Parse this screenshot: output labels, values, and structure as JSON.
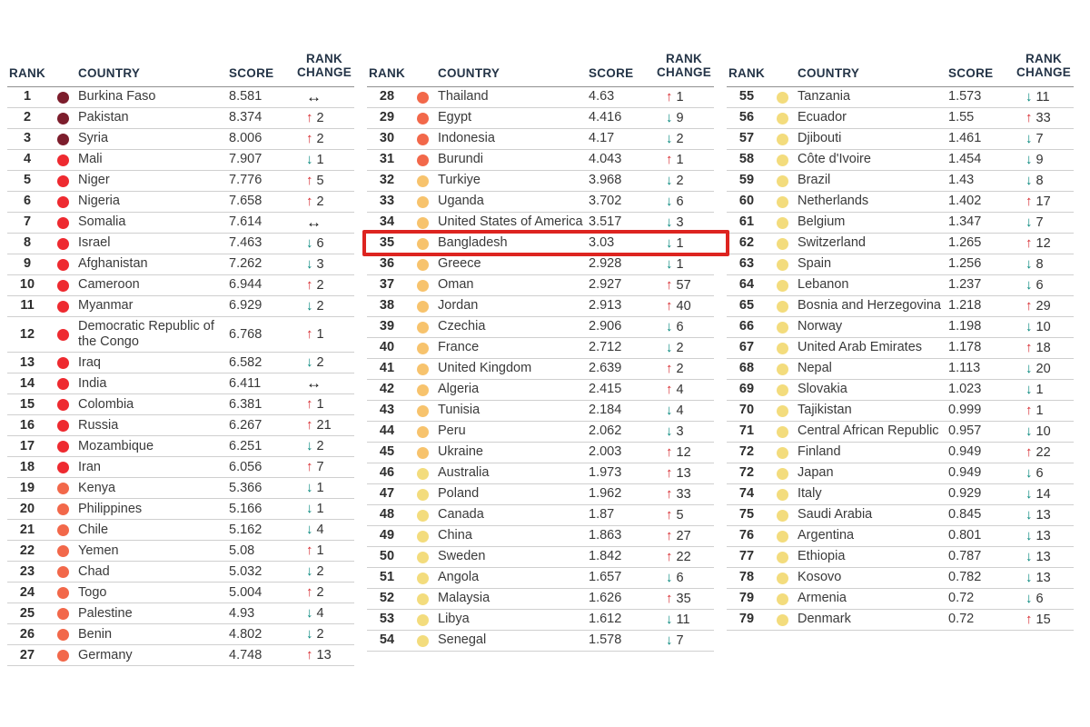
{
  "icons": {
    "up": "↑",
    "down": "↓",
    "same": "↔"
  },
  "colors": {
    "header_text": "#243447",
    "body_text": "#3a3a3a",
    "row_line": "#cfcfcf",
    "header_line": "#8f8f8f",
    "arrow_up": "#d7282e",
    "arrow_down": "#00857a",
    "arrow_same": "#141414",
    "highlight_border": "#dd2420"
  },
  "highlight": {
    "rank": "35",
    "country": "Bangladesh"
  },
  "chart_data": {
    "type": "table",
    "columns": [
      "RANK",
      "COUNTRY",
      "SCORE",
      "RANK CHANGE"
    ],
    "tier_colors": [
      "#7c1d2c",
      "#ee2a30",
      "#f2684a",
      "#f7c36d",
      "#f3dc7d"
    ],
    "tables": [
      {
        "rows": [
          {
            "r": "1",
            "c": "Burkina Faso",
            "s": "8.581",
            "d": "same",
            "v": "",
            "t": 0
          },
          {
            "r": "2",
            "c": "Pakistan",
            "s": "8.374",
            "d": "up",
            "v": "2",
            "t": 0
          },
          {
            "r": "3",
            "c": "Syria",
            "s": "8.006",
            "d": "up",
            "v": "2",
            "t": 0
          },
          {
            "r": "4",
            "c": "Mali",
            "s": "7.907",
            "d": "down",
            "v": "1",
            "t": 1
          },
          {
            "r": "5",
            "c": "Niger",
            "s": "7.776",
            "d": "up",
            "v": "5",
            "t": 1
          },
          {
            "r": "6",
            "c": "Nigeria",
            "s": "7.658",
            "d": "up",
            "v": "2",
            "t": 1
          },
          {
            "r": "7",
            "c": "Somalia",
            "s": "7.614",
            "d": "same",
            "v": "",
            "t": 1
          },
          {
            "r": "8",
            "c": "Israel",
            "s": "7.463",
            "d": "down",
            "v": "6",
            "t": 1
          },
          {
            "r": "9",
            "c": "Afghanistan",
            "s": "7.262",
            "d": "down",
            "v": "3",
            "t": 1
          },
          {
            "r": "10",
            "c": "Cameroon",
            "s": "6.944",
            "d": "up",
            "v": "2",
            "t": 1
          },
          {
            "r": "11",
            "c": "Myanmar",
            "s": "6.929",
            "d": "down",
            "v": "2",
            "t": 1
          },
          {
            "r": "12",
            "c": "Democratic Republic of the Congo",
            "s": "6.768",
            "d": "up",
            "v": "1",
            "t": 1
          },
          {
            "r": "13",
            "c": "Iraq",
            "s": "6.582",
            "d": "down",
            "v": "2",
            "t": 1
          },
          {
            "r": "14",
            "c": "India",
            "s": "6.411",
            "d": "same",
            "v": "",
            "t": 1
          },
          {
            "r": "15",
            "c": "Colombia",
            "s": "6.381",
            "d": "up",
            "v": "1",
            "t": 1
          },
          {
            "r": "16",
            "c": "Russia",
            "s": "6.267",
            "d": "up",
            "v": "21",
            "t": 1
          },
          {
            "r": "17",
            "c": "Mozambique",
            "s": "6.251",
            "d": "down",
            "v": "2",
            "t": 1
          },
          {
            "r": "18",
            "c": "Iran",
            "s": "6.056",
            "d": "up",
            "v": "7",
            "t": 1
          },
          {
            "r": "19",
            "c": "Kenya",
            "s": "5.366",
            "d": "down",
            "v": "1",
            "t": 2
          },
          {
            "r": "20",
            "c": "Philippines",
            "s": "5.166",
            "d": "down",
            "v": "1",
            "t": 2
          },
          {
            "r": "21",
            "c": "Chile",
            "s": "5.162",
            "d": "down",
            "v": "4",
            "t": 2
          },
          {
            "r": "22",
            "c": "Yemen",
            "s": "5.08",
            "d": "up",
            "v": "1",
            "t": 2
          },
          {
            "r": "23",
            "c": "Chad",
            "s": "5.032",
            "d": "down",
            "v": "2",
            "t": 2
          },
          {
            "r": "24",
            "c": "Togo",
            "s": "5.004",
            "d": "up",
            "v": "2",
            "t": 2
          },
          {
            "r": "25",
            "c": "Palestine",
            "s": "4.93",
            "d": "down",
            "v": "4",
            "t": 2
          },
          {
            "r": "26",
            "c": "Benin",
            "s": "4.802",
            "d": "down",
            "v": "2",
            "t": 2
          },
          {
            "r": "27",
            "c": "Germany",
            "s": "4.748",
            "d": "up",
            "v": "13",
            "t": 2
          }
        ]
      },
      {
        "rows": [
          {
            "r": "28",
            "c": "Thailand",
            "s": "4.63",
            "d": "up",
            "v": "1",
            "t": 2
          },
          {
            "r": "29",
            "c": "Egypt",
            "s": "4.416",
            "d": "down",
            "v": "9",
            "t": 2
          },
          {
            "r": "30",
            "c": "Indonesia",
            "s": "4.17",
            "d": "down",
            "v": "2",
            "t": 2
          },
          {
            "r": "31",
            "c": "Burundi",
            "s": "4.043",
            "d": "up",
            "v": "1",
            "t": 2
          },
          {
            "r": "32",
            "c": "Turkiye",
            "s": "3.968",
            "d": "down",
            "v": "2",
            "t": 3
          },
          {
            "r": "33",
            "c": "Uganda",
            "s": "3.702",
            "d": "down",
            "v": "6",
            "t": 3
          },
          {
            "r": "34",
            "c": "United States of America",
            "s": "3.517",
            "d": "down",
            "v": "3",
            "t": 3
          },
          {
            "r": "35",
            "c": "Bangladesh",
            "s": "3.03",
            "d": "down",
            "v": "1",
            "t": 3,
            "hl": true
          },
          {
            "r": "36",
            "c": "Greece",
            "s": "2.928",
            "d": "down",
            "v": "1",
            "t": 3
          },
          {
            "r": "37",
            "c": "Oman",
            "s": "2.927",
            "d": "up",
            "v": "57",
            "t": 3
          },
          {
            "r": "38",
            "c": "Jordan",
            "s": "2.913",
            "d": "up",
            "v": "40",
            "t": 3
          },
          {
            "r": "39",
            "c": "Czechia",
            "s": "2.906",
            "d": "down",
            "v": "6",
            "t": 3
          },
          {
            "r": "40",
            "c": "France",
            "s": "2.712",
            "d": "down",
            "v": "2",
            "t": 3
          },
          {
            "r": "41",
            "c": "United Kingdom",
            "s": "2.639",
            "d": "up",
            "v": "2",
            "t": 3
          },
          {
            "r": "42",
            "c": "Algeria",
            "s": "2.415",
            "d": "up",
            "v": "4",
            "t": 3
          },
          {
            "r": "43",
            "c": "Tunisia",
            "s": "2.184",
            "d": "down",
            "v": "4",
            "t": 3
          },
          {
            "r": "44",
            "c": "Peru",
            "s": "2.062",
            "d": "down",
            "v": "3",
            "t": 3
          },
          {
            "r": "45",
            "c": "Ukraine",
            "s": "2.003",
            "d": "up",
            "v": "12",
            "t": 3
          },
          {
            "r": "46",
            "c": "Australia",
            "s": "1.973",
            "d": "up",
            "v": "13",
            "t": 4
          },
          {
            "r": "47",
            "c": "Poland",
            "s": "1.962",
            "d": "up",
            "v": "33",
            "t": 4
          },
          {
            "r": "48",
            "c": "Canada",
            "s": "1.87",
            "d": "up",
            "v": "5",
            "t": 4
          },
          {
            "r": "49",
            "c": "China",
            "s": "1.863",
            "d": "up",
            "v": "27",
            "t": 4
          },
          {
            "r": "50",
            "c": "Sweden",
            "s": "1.842",
            "d": "up",
            "v": "22",
            "t": 4
          },
          {
            "r": "51",
            "c": "Angola",
            "s": "1.657",
            "d": "down",
            "v": "6",
            "t": 4
          },
          {
            "r": "52",
            "c": "Malaysia",
            "s": "1.626",
            "d": "up",
            "v": "35",
            "t": 4
          },
          {
            "r": "53",
            "c": "Libya",
            "s": "1.612",
            "d": "down",
            "v": "11",
            "t": 4
          },
          {
            "r": "54",
            "c": "Senegal",
            "s": "1.578",
            "d": "down",
            "v": "7",
            "t": 4
          }
        ]
      },
      {
        "rows": [
          {
            "r": "55",
            "c": "Tanzania",
            "s": "1.573",
            "d": "down",
            "v": "11",
            "t": 4
          },
          {
            "r": "56",
            "c": "Ecuador",
            "s": "1.55",
            "d": "up",
            "v": "33",
            "t": 4
          },
          {
            "r": "57",
            "c": "Djibouti",
            "s": "1.461",
            "d": "down",
            "v": "7",
            "t": 4
          },
          {
            "r": "58",
            "c": "Côte d'Ivoire",
            "s": "1.454",
            "d": "down",
            "v": "9",
            "t": 4
          },
          {
            "r": "59",
            "c": "Brazil",
            "s": "1.43",
            "d": "down",
            "v": "8",
            "t": 4
          },
          {
            "r": "60",
            "c": "Netherlands",
            "s": "1.402",
            "d": "up",
            "v": "17",
            "t": 4
          },
          {
            "r": "61",
            "c": "Belgium",
            "s": "1.347",
            "d": "down",
            "v": "7",
            "t": 4
          },
          {
            "r": "62",
            "c": "Switzerland",
            "s": "1.265",
            "d": "up",
            "v": "12",
            "t": 4
          },
          {
            "r": "63",
            "c": "Spain",
            "s": "1.256",
            "d": "down",
            "v": "8",
            "t": 4
          },
          {
            "r": "64",
            "c": "Lebanon",
            "s": "1.237",
            "d": "down",
            "v": "6",
            "t": 4
          },
          {
            "r": "65",
            "c": "Bosnia and Herzegovina",
            "s": "1.218",
            "d": "up",
            "v": "29",
            "t": 4
          },
          {
            "r": "66",
            "c": "Norway",
            "s": "1.198",
            "d": "down",
            "v": "10",
            "t": 4
          },
          {
            "r": "67",
            "c": "United Arab Emirates",
            "s": "1.178",
            "d": "up",
            "v": "18",
            "t": 4
          },
          {
            "r": "68",
            "c": "Nepal",
            "s": "1.113",
            "d": "down",
            "v": "20",
            "t": 4
          },
          {
            "r": "69",
            "c": "Slovakia",
            "s": "1.023",
            "d": "down",
            "v": "1",
            "t": 4
          },
          {
            "r": "70",
            "c": "Tajikistan",
            "s": "0.999",
            "d": "up",
            "v": "1",
            "t": 4
          },
          {
            "r": "71",
            "c": "Central African Republic",
            "s": "0.957",
            "d": "down",
            "v": "10",
            "t": 4
          },
          {
            "r": "72",
            "c": "Finland",
            "s": "0.949",
            "d": "up",
            "v": "22",
            "t": 4
          },
          {
            "r": "72",
            "c": "Japan",
            "s": "0.949",
            "d": "down",
            "v": "6",
            "t": 4
          },
          {
            "r": "74",
            "c": "Italy",
            "s": "0.929",
            "d": "down",
            "v": "14",
            "t": 4
          },
          {
            "r": "75",
            "c": "Saudi Arabia",
            "s": "0.845",
            "d": "down",
            "v": "13",
            "t": 4
          },
          {
            "r": "76",
            "c": "Argentina",
            "s": "0.801",
            "d": "down",
            "v": "13",
            "t": 4
          },
          {
            "r": "77",
            "c": "Ethiopia",
            "s": "0.787",
            "d": "down",
            "v": "13",
            "t": 4
          },
          {
            "r": "78",
            "c": "Kosovo",
            "s": "0.782",
            "d": "down",
            "v": "13",
            "t": 4
          },
          {
            "r": "79",
            "c": "Armenia",
            "s": "0.72",
            "d": "down",
            "v": "6",
            "t": 4
          },
          {
            "r": "79",
            "c": "Denmark",
            "s": "0.72",
            "d": "up",
            "v": "15",
            "t": 4
          }
        ]
      }
    ]
  }
}
